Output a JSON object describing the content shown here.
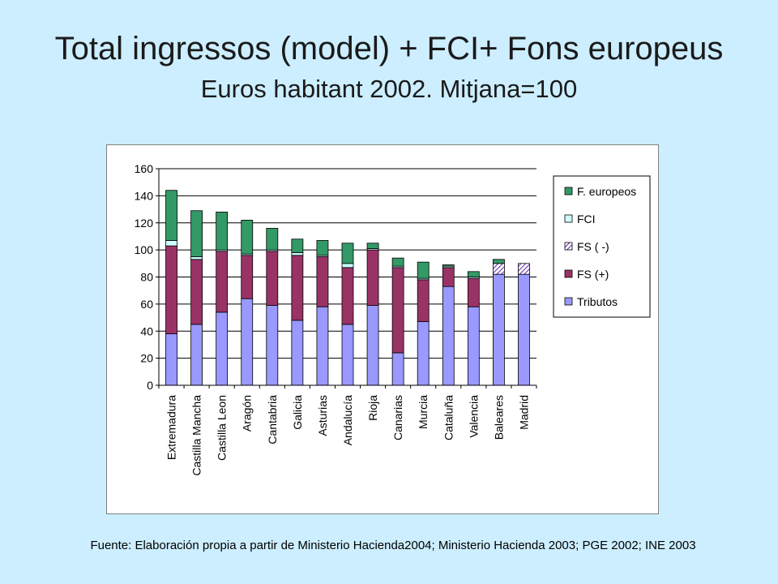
{
  "slide": {
    "title": "Total ingressos (model) + FCI+ Fons europeus",
    "subtitle": "Euros habitant 2002. Mitjana=100",
    "footnote": "Fuente: Elaboración propia a partir de Ministerio Hacienda2004; Ministerio Hacienda 2003; PGE 2002; INE 2003"
  },
  "chart_data": {
    "type": "bar",
    "stacked": true,
    "title": "",
    "xlabel": "",
    "ylabel": "",
    "ylim": [
      0,
      160
    ],
    "yticks": [
      0,
      20,
      40,
      60,
      80,
      100,
      120,
      140,
      160
    ],
    "grid": true,
    "legend_position": "right",
    "categories": [
      "Extremadura",
      "Castilla Mancha",
      "Castilla Leon",
      "Aragón",
      "Cantabria",
      "Galicia",
      "Asturias",
      "Andalucía",
      "Rioja",
      "Canarias",
      "Murcia",
      "Cataluña",
      "Valencia",
      "Baleares",
      "Madrid"
    ],
    "series": [
      {
        "name": "Tributos",
        "color": "#9999ff",
        "pattern": "solid",
        "values": [
          38,
          45,
          54,
          64,
          59,
          48,
          58,
          45,
          59,
          24,
          47,
          73,
          58,
          82,
          82
        ]
      },
      {
        "name": "FS (+)",
        "color": "#993366",
        "pattern": "solid",
        "values": [
          65,
          48,
          45,
          32,
          40,
          48,
          37,
          42,
          41,
          63,
          31,
          14,
          21,
          0,
          0
        ]
      },
      {
        "name": "FS ( -)",
        "color": "#9966cc",
        "pattern": "hatched",
        "values": [
          0,
          0,
          0,
          0,
          0,
          0,
          0,
          0,
          0,
          0,
          0,
          0,
          0,
          8,
          8
        ]
      },
      {
        "name": "FCI",
        "color": "#ccffff",
        "pattern": "solid",
        "values": [
          4,
          2,
          1,
          1,
          1,
          2,
          1,
          3,
          1,
          1,
          1,
          1,
          1,
          0,
          0
        ]
      },
      {
        "name": "F. europeos",
        "color": "#339966",
        "pattern": "solid",
        "values": [
          37,
          34,
          28,
          25,
          16,
          10,
          11,
          15,
          4,
          6,
          12,
          1,
          4,
          3,
          0
        ]
      }
    ],
    "legend_order": [
      "F. europeos",
      "FCI",
      "FS ( -)",
      "FS (+)",
      "Tributos"
    ]
  }
}
